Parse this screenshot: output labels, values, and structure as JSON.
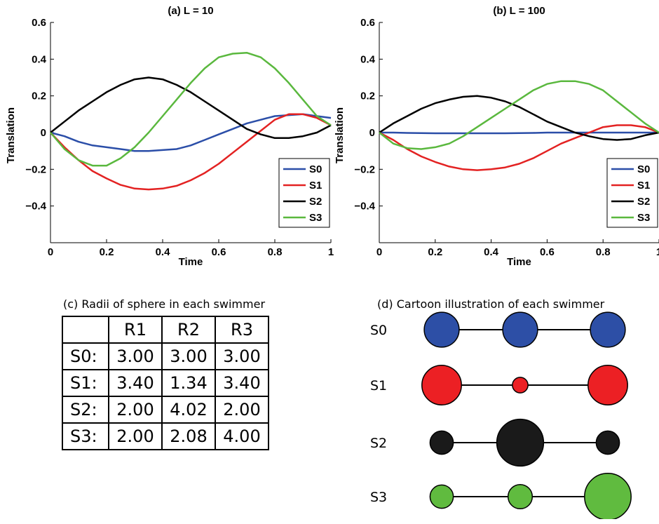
{
  "chart_data": [
    {
      "type": "line",
      "title": "(a) L = 10",
      "xlabel": "Time",
      "ylabel": "Translation",
      "xlim": [
        0,
        1
      ],
      "ylim": [
        -0.6,
        0.6
      ],
      "xticks": [
        "0",
        "0.2",
        "0.4",
        "0.6",
        "0.8",
        "1"
      ],
      "yticks": [
        "0.6",
        "0.4",
        "0.2",
        "0",
        "−0.2",
        "−0.4"
      ],
      "legend_position": "lower-right",
      "x": [
        0,
        0.05,
        0.1,
        0.15,
        0.2,
        0.25,
        0.3,
        0.35,
        0.4,
        0.45,
        0.5,
        0.55,
        0.6,
        0.65,
        0.7,
        0.75,
        0.8,
        0.85,
        0.9,
        0.95,
        1.0
      ],
      "series": [
        {
          "name": "S0",
          "color": "#2b4ea8",
          "values": [
            0,
            -0.02,
            -0.05,
            -0.07,
            -0.08,
            -0.09,
            -0.1,
            -0.1,
            -0.095,
            -0.09,
            -0.07,
            -0.04,
            -0.01,
            0.02,
            0.05,
            0.07,
            0.09,
            0.095,
            0.1,
            0.09,
            0.08
          ]
        },
        {
          "name": "S1",
          "color": "#e32222",
          "values": [
            0,
            -0.08,
            -0.15,
            -0.21,
            -0.25,
            -0.285,
            -0.305,
            -0.31,
            -0.305,
            -0.29,
            -0.26,
            -0.22,
            -0.17,
            -0.11,
            -0.05,
            0.01,
            0.07,
            0.1,
            0.1,
            0.08,
            0.04
          ]
        },
        {
          "name": "S2",
          "color": "#000000",
          "values": [
            0,
            0.06,
            0.12,
            0.17,
            0.22,
            0.26,
            0.29,
            0.3,
            0.29,
            0.26,
            0.22,
            0.17,
            0.12,
            0.07,
            0.02,
            -0.01,
            -0.03,
            -0.03,
            -0.02,
            0.0,
            0.04
          ]
        },
        {
          "name": "S3",
          "color": "#5ab83e",
          "values": [
            0,
            -0.09,
            -0.15,
            -0.18,
            -0.18,
            -0.14,
            -0.08,
            0.0,
            0.09,
            0.18,
            0.27,
            0.35,
            0.41,
            0.43,
            0.435,
            0.41,
            0.35,
            0.27,
            0.18,
            0.09,
            0.04
          ]
        }
      ]
    },
    {
      "type": "line",
      "title": "(b) L = 100",
      "xlabel": "Time",
      "ylabel": "Translation",
      "xlim": [
        0,
        1
      ],
      "ylim": [
        -0.6,
        0.6
      ],
      "xticks": [
        "0",
        "0.2",
        "0.4",
        "0.6",
        "0.8",
        "1"
      ],
      "yticks": [
        "0.6",
        "0.4",
        "0.2",
        "0",
        "−0.2",
        "−0.4"
      ],
      "legend_position": "lower-right",
      "x": [
        0,
        0.05,
        0.1,
        0.15,
        0.2,
        0.25,
        0.3,
        0.35,
        0.4,
        0.45,
        0.5,
        0.55,
        0.6,
        0.65,
        0.7,
        0.75,
        0.8,
        0.85,
        0.9,
        0.95,
        1.0
      ],
      "series": [
        {
          "name": "S0",
          "color": "#2b4ea8",
          "values": [
            0,
            0,
            -0.002,
            -0.003,
            -0.004,
            -0.004,
            -0.004,
            -0.004,
            -0.004,
            -0.004,
            -0.003,
            -0.002,
            0,
            0,
            0,
            0,
            0,
            0,
            0,
            0,
            0
          ]
        },
        {
          "name": "S1",
          "color": "#e32222",
          "values": [
            0,
            -0.04,
            -0.09,
            -0.13,
            -0.16,
            -0.185,
            -0.2,
            -0.205,
            -0.2,
            -0.19,
            -0.17,
            -0.14,
            -0.1,
            -0.06,
            -0.03,
            0.0,
            0.03,
            0.04,
            0.04,
            0.03,
            0
          ]
        },
        {
          "name": "S2",
          "color": "#000000",
          "values": [
            0,
            0.05,
            0.09,
            0.13,
            0.16,
            0.18,
            0.195,
            0.2,
            0.19,
            0.17,
            0.14,
            0.1,
            0.06,
            0.03,
            0.0,
            -0.02,
            -0.035,
            -0.04,
            -0.035,
            -0.015,
            0
          ]
        },
        {
          "name": "S3",
          "color": "#5ab83e",
          "values": [
            0,
            -0.06,
            -0.085,
            -0.09,
            -0.08,
            -0.06,
            -0.02,
            0.03,
            0.08,
            0.13,
            0.18,
            0.23,
            0.265,
            0.28,
            0.28,
            0.265,
            0.23,
            0.17,
            0.11,
            0.05,
            0
          ]
        }
      ]
    }
  ],
  "table_panel": {
    "caption": "(c) Radii of sphere in each swimmer",
    "columns": [
      "",
      "R1",
      "R2",
      "R3"
    ],
    "rows": [
      [
        "S0:",
        "3.00",
        "3.00",
        "3.00"
      ],
      [
        "S1:",
        "3.40",
        "1.34",
        "3.40"
      ],
      [
        "S2:",
        "2.00",
        "4.02",
        "2.00"
      ],
      [
        "S3:",
        "2.00",
        "2.08",
        "4.00"
      ]
    ]
  },
  "cartoon_panel": {
    "caption": "(d) Cartoon illustration of each swimmer",
    "swimmers": [
      {
        "label": "S0",
        "color": "#2d4fa6",
        "radii": [
          3.0,
          3.0,
          3.0
        ]
      },
      {
        "label": "S1",
        "color": "#ec2024",
        "radii": [
          3.4,
          1.34,
          3.4
        ]
      },
      {
        "label": "S2",
        "color": "#1a1a1a",
        "radii": [
          2.0,
          4.02,
          2.0
        ]
      },
      {
        "label": "S3",
        "color": "#60bb3f",
        "radii": [
          2.0,
          2.08,
          4.0
        ]
      }
    ]
  }
}
